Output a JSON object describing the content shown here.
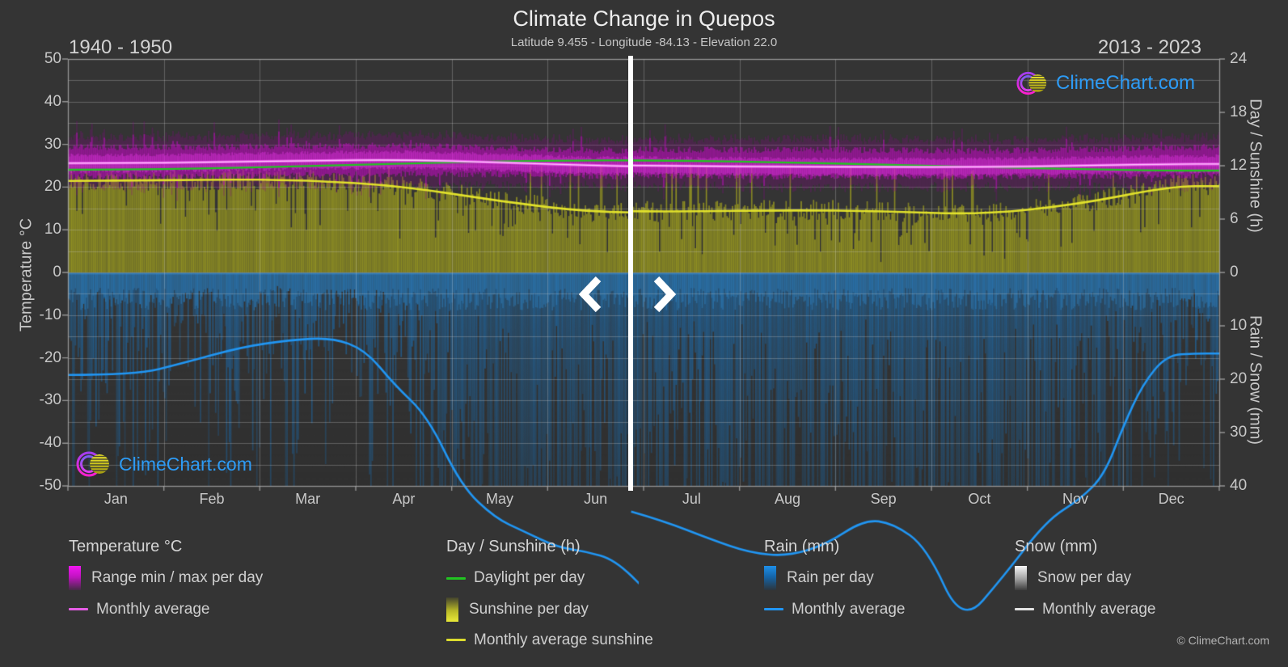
{
  "chart_data": {
    "type": "area",
    "title": "Climate Change in Quepos",
    "subtitle": "Latitude 9.455 - Longitude -84.13 - Elevation 22.0",
    "location": {
      "latitude": 9.455,
      "longitude": -84.13,
      "elevation": 22.0
    },
    "period_left": "1940 - 1950",
    "period_right": "2013 - 2023",
    "months": [
      "Jan",
      "Feb",
      "Mar",
      "Apr",
      "May",
      "Jun",
      "Jul",
      "Aug",
      "Sep",
      "Oct",
      "Nov",
      "Dec"
    ],
    "axes": {
      "temperature": {
        "label": "Temperature °C",
        "min": -50,
        "max": 50,
        "ticks": [
          50,
          40,
          30,
          20,
          10,
          0,
          -10,
          -20,
          -30,
          -40,
          -50
        ]
      },
      "day_sunshine": {
        "label": "Day / Sunshine (h)",
        "min": 0,
        "max": 24,
        "ticks": [
          24,
          18,
          12,
          6,
          0
        ]
      },
      "rain_snow": {
        "label": "Rain / Snow (mm)",
        "min": 0,
        "max": 40,
        "ticks": [
          0,
          10,
          20,
          30,
          40
        ]
      }
    },
    "divider_month_frac": 5.87,
    "series": {
      "daylight_h": [
        11.55,
        11.7,
        11.95,
        12.25,
        12.5,
        12.62,
        12.55,
        12.38,
        12.12,
        11.85,
        11.62,
        11.45
      ],
      "temp_avg_c_1940_1950": [
        25.6,
        25.8,
        26.2,
        26.4,
        25.8,
        25.0,
        24.7,
        24.6,
        24.5,
        24.5,
        24.8,
        25.2
      ],
      "temp_avg_c_2013_2023": [
        25.9,
        26.1,
        26.5,
        26.7,
        26.1,
        25.2,
        24.9,
        24.8,
        24.7,
        24.7,
        25.0,
        25.4
      ],
      "temp_max_c_1940_1950": [
        29.3,
        29.4,
        29.6,
        29.7,
        29.2,
        28.6,
        28.4,
        28.4,
        28.3,
        28.2,
        28.5,
        28.9
      ],
      "temp_min_c_1940_1950": [
        22.4,
        22.5,
        22.8,
        23.1,
        23.0,
        22.6,
        22.3,
        22.2,
        22.1,
        22.1,
        22.3,
        22.4
      ],
      "temp_max_c_2013_2023": [
        29.6,
        29.7,
        29.9,
        30.0,
        29.5,
        28.9,
        28.7,
        28.7,
        28.6,
        28.5,
        28.8,
        29.2
      ],
      "temp_min_c_2013_2023": [
        22.7,
        22.8,
        23.1,
        23.4,
        23.3,
        22.9,
        22.6,
        22.5,
        22.4,
        22.4,
        22.6,
        22.7
      ],
      "sunshine_h_1940_1950": [
        10.3,
        10.45,
        10.4,
        9.7,
        8.0,
        6.7,
        6.8,
        6.8,
        6.8,
        6.8,
        7.2,
        9.5
      ],
      "sunshine_h_2013_2023": [
        10.2,
        10.3,
        10.3,
        9.6,
        7.8,
        6.9,
        6.85,
        7.0,
        6.9,
        6.5,
        7.6,
        9.7
      ],
      "rain_avg_mm_line_1940_1950": [
        [
          0,
          19.2
        ],
        [
          0.7,
          19.2
        ],
        [
          1.2,
          17.0
        ],
        [
          1.8,
          14.0
        ],
        [
          2.3,
          12.7
        ],
        [
          2.75,
          12.2
        ],
        [
          3.1,
          14.5
        ],
        [
          3.4,
          21.0
        ],
        [
          3.75,
          27.0
        ],
        [
          4.1,
          40.0
        ],
        [
          4.45,
          46.0
        ],
        [
          4.75,
          48.5
        ],
        [
          5.1,
          51.5
        ],
        [
          5.4,
          52.3
        ],
        [
          5.7,
          53.8
        ],
        [
          6.05,
          60.0
        ]
      ],
      "rain_avg_mm_line_2013_2023": [
        [
          5.87,
          44.8
        ],
        [
          6.2,
          46.5
        ],
        [
          6.7,
          50.0
        ],
        [
          7.1,
          52.5
        ],
        [
          7.5,
          53.2
        ],
        [
          7.9,
          51.0
        ],
        [
          8.3,
          46.3
        ],
        [
          8.6,
          47.0
        ],
        [
          8.95,
          51.5
        ],
        [
          9.32,
          66.0
        ],
        [
          9.75,
          57.0
        ],
        [
          10.2,
          46.5
        ],
        [
          10.55,
          42.5
        ],
        [
          10.8,
          38.0
        ],
        [
          11.0,
          28.8
        ],
        [
          11.2,
          21.0
        ],
        [
          11.45,
          15.5
        ],
        [
          11.75,
          15.2
        ],
        [
          12,
          15.2
        ]
      ],
      "snow_mm": [
        0,
        0,
        0,
        0,
        0,
        0,
        0,
        0,
        0,
        0,
        0,
        0
      ]
    }
  },
  "controls": {
    "left_arrow": "<",
    "right_arrow": ">"
  },
  "legend": {
    "groups": [
      {
        "heading": "Temperature °C",
        "items": [
          {
            "swatch": "gradient-magenta",
            "label": "Range min / max per day"
          },
          {
            "swatch": "line-magenta",
            "label": "Monthly average"
          }
        ]
      },
      {
        "heading": "Day / Sunshine (h)",
        "items": [
          {
            "swatch": "line-green",
            "label": "Daylight per day"
          },
          {
            "swatch": "gradient-yellow",
            "label": "Sunshine per day"
          },
          {
            "swatch": "line-yellow",
            "label": "Monthly average sunshine"
          }
        ]
      },
      {
        "heading": "Rain (mm)",
        "items": [
          {
            "swatch": "gradient-blue",
            "label": "Rain per day"
          },
          {
            "swatch": "line-blue",
            "label": "Monthly average"
          }
        ]
      },
      {
        "heading": "Snow (mm)",
        "items": [
          {
            "swatch": "gradient-snow",
            "label": "Snow per day"
          },
          {
            "swatch": "line-white",
            "label": "Monthly average"
          }
        ]
      }
    ]
  },
  "watermark": {
    "text": "ClimeChart.com"
  },
  "footer": {
    "copyright": "© ClimeChart.com"
  },
  "colors": {
    "background": "#343434",
    "grid": "#cdcdcd",
    "axis": "#a8a8a8",
    "temp_range_band": "#cc10cc",
    "temp_monthly_avg_line": "#ef62ef",
    "daylight_line": "#21c521",
    "sunshine_fill": "#8f8f23",
    "sunshine_monthly_avg_line": "#e2e22c",
    "rain_fill": "#1d6ba6",
    "rain_monthly_avg_line": "#2196f3",
    "snow_fill": "#ededed",
    "divider": "#ffffff",
    "watermark_blue": "#2d9bf5"
  }
}
